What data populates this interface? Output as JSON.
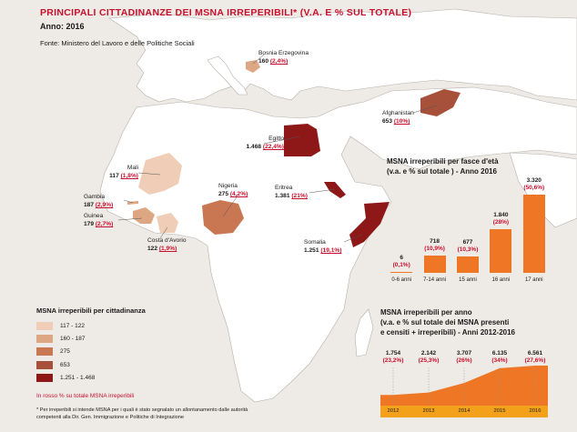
{
  "header": {
    "title": "PRINCIPALI CITTADINANZE DEI MSNA IRREPERIBILI* (V.A. E % SUL TOTALE)",
    "year": "Anno: 2016",
    "source": "Fonte: Ministero del Lavoro e delle Politiche Sociali"
  },
  "colors": {
    "sea": "#eeeae5",
    "land": "#ffffff",
    "border": "#b5b0aa",
    "class_1": "#efcdb6",
    "class_2": "#dea783",
    "class_3": "#c87752",
    "class_4": "#a7503a",
    "class_5": "#8e1818",
    "bar": "#ee7624",
    "area": "#ee7624",
    "accent": "#c8102e"
  },
  "countries": [
    {
      "name": "Bosnia Erzegovina",
      "value": "160",
      "pct": "(2,4%)"
    },
    {
      "name": "Afghanistan",
      "value": "653",
      "pct": "(10%)"
    },
    {
      "name": "Egitto",
      "value": "1.468",
      "pct": "(22,4%)"
    },
    {
      "name": "Mali",
      "value": "117",
      "pct": "(1,8%)"
    },
    {
      "name": "Nigeria",
      "value": "275",
      "pct": "(4,2%)"
    },
    {
      "name": "Eritrea",
      "value": "1.381",
      "pct": "(21%)"
    },
    {
      "name": "Gambia",
      "value": "187",
      "pct": "(2,9%)"
    },
    {
      "name": "Guinea",
      "value": "179",
      "pct": "(2,7%)"
    },
    {
      "name": "Costa d'Avorio",
      "value": "122",
      "pct": "(1,9%)"
    },
    {
      "name": "Somalia",
      "value": "1.251",
      "pct": "(19,1%)"
    }
  ],
  "legend": {
    "title": "MSNA irreperibili per cittadinanza",
    "items": [
      {
        "label": "117 - 122"
      },
      {
        "label": "160 - 187"
      },
      {
        "label": "275"
      },
      {
        "label": "653"
      },
      {
        "label": "1.251 - 1.468"
      }
    ],
    "note": "In rosso % su totale MSNA irreperibili",
    "footnote": "* Per irreperibili si intende MSNA per i quali è stato segnalato un allontanamento dalle autorità competenti alla Dir. Gen. Immigrazione e Politiche di Integrazione"
  },
  "chart_data": [
    {
      "type": "bar",
      "title": "MSNA irreperibili per fasce d'età",
      "subtitle": "(v.a. e % sul totale ) - Anno 2016",
      "categories": [
        "0-6 anni",
        "7-14 anni",
        "15 anni",
        "16 anni",
        "17 anni"
      ],
      "values": [
        6,
        718,
        677,
        1840,
        3320
      ],
      "value_labels": [
        "6",
        "718",
        "677",
        "1.840",
        "3.320"
      ],
      "pct_labels": [
        "(0,1%)",
        "(10,9%)",
        "(10,3%)",
        "(28%)",
        "(50,6%)"
      ],
      "ylim": [
        0,
        3320
      ]
    },
    {
      "type": "area",
      "title": "MSNA irreperibili per anno",
      "subtitle_1": "(v.a. e % sul totale dei MSNA presenti",
      "subtitle_2": "e censiti + irreperibili) - Anni 2012-2016",
      "categories": [
        "2012",
        "2013",
        "2014",
        "2015",
        "2016"
      ],
      "values": [
        1754,
        2142,
        3707,
        6135,
        6561
      ],
      "value_labels": [
        "1.754",
        "2.142",
        "3.707",
        "6.135",
        "6.561"
      ],
      "pct_labels": [
        "(23,2%)",
        "(25,3%)",
        "(26%)",
        "(34%)",
        "(27,6%)"
      ],
      "ylim": [
        0,
        6561
      ]
    }
  ]
}
